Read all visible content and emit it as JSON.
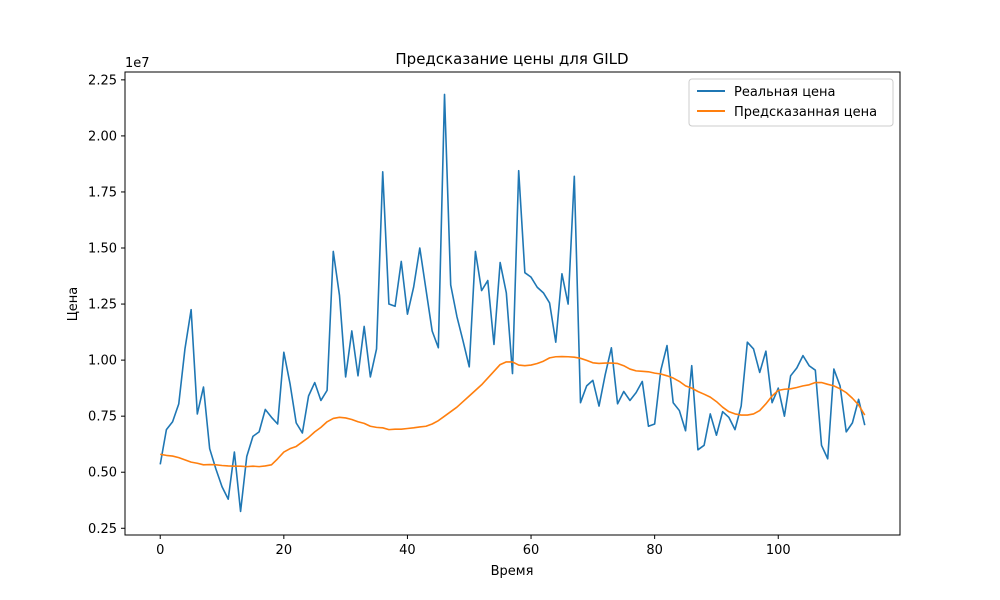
{
  "chart_data": {
    "type": "line",
    "title": "Предсказание цены для GILD",
    "xlabel": "Время",
    "ylabel": "Цена",
    "y_offset_text": "1e7",
    "y_scale": 10000000,
    "xlim": [
      -5.7,
      119.7
    ],
    "ylim": [
      2200000,
      22850000
    ],
    "x_ticks": [
      0,
      20,
      40,
      60,
      80,
      100
    ],
    "x_tick_labels": [
      "0",
      "20",
      "40",
      "60",
      "80",
      "100"
    ],
    "y_ticks": [
      2500000,
      5000000,
      7500000,
      10000000,
      12500000,
      15000000,
      17500000,
      20000000,
      22500000
    ],
    "y_tick_labels": [
      "0.25",
      "0.50",
      "0.75",
      "1.00",
      "1.25",
      "1.50",
      "1.75",
      "2.00",
      "2.25"
    ],
    "grid": false,
    "legend_position": "top-right",
    "series": [
      {
        "name": "Реальная цена",
        "color": "#1f77b4",
        "values": [
          5350000,
          6900000,
          7250000,
          8050000,
          10500000,
          12250000,
          7600000,
          8800000,
          6050000,
          5150000,
          4350000,
          3800000,
          5900000,
          3250000,
          5700000,
          6600000,
          6800000,
          7800000,
          7450000,
          7150000,
          10350000,
          8950000,
          7200000,
          6750000,
          8400000,
          9000000,
          8200000,
          8650000,
          14850000,
          12900000,
          9250000,
          11300000,
          9300000,
          11500000,
          9250000,
          10500000,
          18400000,
          12500000,
          12400000,
          14400000,
          12050000,
          13250000,
          15000000,
          13150000,
          11300000,
          10550000,
          21850000,
          13350000,
          11950000,
          10850000,
          9700000,
          14850000,
          13100000,
          13550000,
          10700000,
          14350000,
          13000000,
          9400000,
          18450000,
          13900000,
          13700000,
          13250000,
          13000000,
          12550000,
          10800000,
          13850000,
          12500000,
          18200000,
          8100000,
          8850000,
          9100000,
          7950000,
          9350000,
          10550000,
          8050000,
          8600000,
          8200000,
          8550000,
          9050000,
          7050000,
          7150000,
          9550000,
          10650000,
          8100000,
          7750000,
          6850000,
          9750000,
          6000000,
          6200000,
          7600000,
          6650000,
          7700000,
          7450000,
          6900000,
          7950000,
          10800000,
          10500000,
          9450000,
          10400000,
          8100000,
          8750000,
          7500000,
          9300000,
          9650000,
          10200000,
          9750000,
          9550000,
          6200000,
          5600000,
          9600000,
          8850000,
          6800000,
          7200000,
          8250000,
          7100000
        ],
        "x_start": 0
      },
      {
        "name": "Предсказанная цена",
        "color": "#ff7f0e",
        "values": [
          5800000,
          5750000,
          5720000,
          5650000,
          5550000,
          5450000,
          5400000,
          5330000,
          5340000,
          5330000,
          5300000,
          5280000,
          5270000,
          5270000,
          5250000,
          5270000,
          5250000,
          5280000,
          5330000,
          5600000,
          5900000,
          6050000,
          6150000,
          6350000,
          6550000,
          6800000,
          7000000,
          7250000,
          7400000,
          7450000,
          7420000,
          7350000,
          7250000,
          7180000,
          7050000,
          7000000,
          6980000,
          6900000,
          6920000,
          6920000,
          6950000,
          6980000,
          7020000,
          7050000,
          7150000,
          7300000,
          7500000,
          7700000,
          7900000,
          8150000,
          8400000,
          8650000,
          8900000,
          9200000,
          9500000,
          9800000,
          9920000,
          9920000,
          9780000,
          9750000,
          9780000,
          9850000,
          9950000,
          10100000,
          10150000,
          10160000,
          10150000,
          10130000,
          10080000,
          9990000,
          9880000,
          9850000,
          9870000,
          9870000,
          9850000,
          9750000,
          9600000,
          9520000,
          9500000,
          9480000,
          9420000,
          9380000,
          9300000,
          9200000,
          9050000,
          8850000,
          8750000,
          8600000,
          8480000,
          8350000,
          8150000,
          7900000,
          7700000,
          7600000,
          7550000,
          7550000,
          7600000,
          7750000,
          8050000,
          8400000,
          8650000,
          8700000,
          8720000,
          8780000,
          8850000,
          8900000,
          9000000,
          9000000,
          8920000,
          8850000,
          8720000,
          8550000,
          8300000,
          8000000,
          7550000
        ],
        "x_start": 0
      }
    ]
  }
}
